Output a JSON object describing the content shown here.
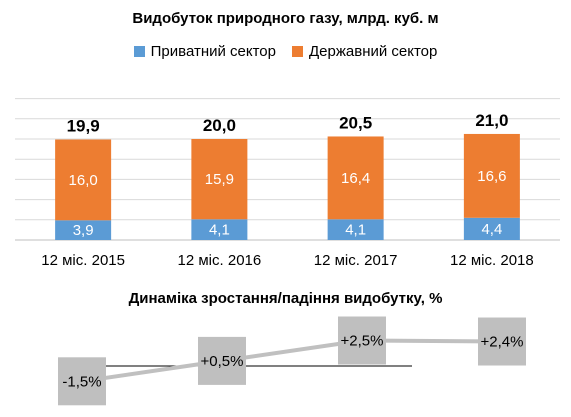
{
  "chart_data": [
    {
      "type": "bar",
      "stacked": true,
      "title": "Видобуток природного газу, млрд. куб. м",
      "categories": [
        "12 міс. 2015",
        "12 міс. 2016",
        "12 міс. 2017",
        "12 міс. 2018"
      ],
      "series": [
        {
          "name": "Приватний сектор",
          "values": [
            "3,9",
            "4,1",
            "4,1",
            "4,4"
          ],
          "color": "#5B9BD5"
        },
        {
          "name": "Державний сектор",
          "values": [
            "16,0",
            "15,9",
            "16,4",
            "16,6"
          ],
          "color": "#ED7D31"
        }
      ],
      "totals": [
        "19,9",
        "20,0",
        "20,5",
        "21,0"
      ],
      "legend": "top",
      "grid": true
    },
    {
      "type": "line",
      "title": "Динаміка зростання/падіння видобутку, %",
      "values": [
        -1.5,
        0.5,
        2.5,
        2.4
      ],
      "labels": [
        "-1,5%",
        "+0,5%",
        "+2,5%",
        "+2,4%"
      ],
      "line_color": "#C0C0C0"
    }
  ]
}
